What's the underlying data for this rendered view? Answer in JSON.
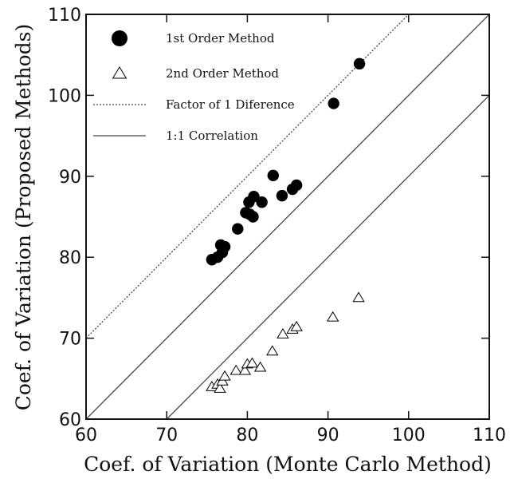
{
  "chart_data": {
    "type": "scatter",
    "xlabel": "Coef. of Variation (Monte Carlo Method)",
    "ylabel": "Coef. of Variation (Proposed Methods)",
    "xlim": [
      60,
      110
    ],
    "ylim": [
      60,
      110
    ],
    "xticks": [
      60,
      70,
      80,
      90,
      100,
      110
    ],
    "yticks": [
      60,
      70,
      80,
      90,
      100,
      110
    ],
    "xtick_labels": [
      "60",
      "70",
      "80",
      "90",
      "100",
      "110"
    ],
    "ytick_labels": [
      "60",
      "70",
      "80",
      "90",
      "100",
      "110"
    ],
    "grid": false,
    "legend_position": "top-left",
    "series": [
      {
        "name": "1st Order Method",
        "marker": "filled-circle",
        "color": "#000000",
        "points": [
          [
            75.6,
            79.7
          ],
          [
            76.3,
            80.0
          ],
          [
            76.7,
            81.5
          ],
          [
            76.9,
            80.6
          ],
          [
            77.2,
            81.3
          ],
          [
            78.8,
            83.5
          ],
          [
            79.8,
            85.5
          ],
          [
            80.2,
            86.8
          ],
          [
            80.3,
            85.3
          ],
          [
            80.7,
            85.0
          ],
          [
            80.8,
            87.5
          ],
          [
            81.8,
            86.8
          ],
          [
            83.2,
            90.1
          ],
          [
            84.3,
            87.6
          ],
          [
            85.6,
            88.4
          ],
          [
            86.1,
            88.9
          ],
          [
            90.7,
            99.0
          ],
          [
            93.9,
            103.9
          ]
        ]
      },
      {
        "name": "2nd Order Method",
        "marker": "open-triangle",
        "color": "#000000",
        "points": [
          [
            75.6,
            64.0
          ],
          [
            76.3,
            64.3
          ],
          [
            76.6,
            63.8
          ],
          [
            76.9,
            64.7
          ],
          [
            77.2,
            65.3
          ],
          [
            78.6,
            66.0
          ],
          [
            79.7,
            66.0
          ],
          [
            80.0,
            66.8
          ],
          [
            80.6,
            66.9
          ],
          [
            81.6,
            66.4
          ],
          [
            83.1,
            68.4
          ],
          [
            84.4,
            70.5
          ],
          [
            85.6,
            71.1
          ],
          [
            86.1,
            71.4
          ],
          [
            90.6,
            72.6
          ],
          [
            93.8,
            75.0
          ]
        ]
      }
    ],
    "reference_lines": [
      {
        "name": "Factor of 1 Diference",
        "style": "dotted",
        "offset": 10,
        "color": "#444444"
      },
      {
        "name": "1:1 Correlation",
        "style": "solid",
        "offset": 0,
        "color": "#444444"
      },
      {
        "name": "",
        "style": "solid",
        "offset": -10,
        "color": "#444444"
      }
    ],
    "legend": [
      {
        "label": "1st Order Method",
        "symbol": "filled-circle"
      },
      {
        "label": "2nd Order Method",
        "symbol": "open-triangle"
      },
      {
        "label": "Factor of 1 Diference",
        "symbol": "dotted-line"
      },
      {
        "label": "1:1 Correlation",
        "symbol": "solid-line"
      }
    ]
  }
}
